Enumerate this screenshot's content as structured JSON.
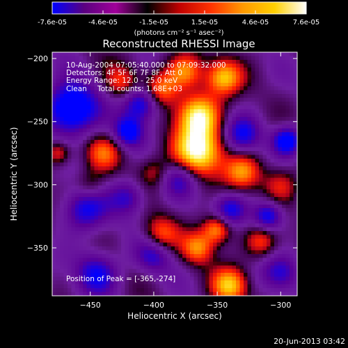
{
  "chart_data": {
    "type": "heatmap",
    "title": "Reconstructed RHESSI Image",
    "xlabel": "Heliocentric X (arcsec)",
    "ylabel": "Heliocentric Y (arcsec)",
    "xlim": [
      -480,
      -287
    ],
    "ylim": [
      -388,
      -195
    ],
    "xticks": [
      -450,
      -400,
      -350,
      -300
    ],
    "yticks": [
      -200,
      -250,
      -300,
      -350
    ],
    "colorbar": {
      "range": [
        -7.6e-05,
        7.6e-05
      ],
      "ticks": [
        "-7.6e-05",
        "-4.6e-05",
        "-1.5e-05",
        "1.5e-05",
        "4.6e-05",
        "7.6e-05"
      ],
      "unit_label": "(photons cm⁻² s⁻¹ asec⁻²)",
      "colors": [
        "#0000ff",
        "#5a0080",
        "#a0009a",
        "#000000",
        "#c00000",
        "#ff3300",
        "#ff9900",
        "#ffd000",
        "#ffffff"
      ]
    },
    "info": {
      "time_range": "10-Aug-2004 07:05:40.000 to 07:09:32.000",
      "detectors": "Detectors: 4F 5F 6F 7F 8F, Att 0",
      "energy_range": "Energy Range: 12.0 - 25.0 keV",
      "method": "Clean",
      "total_counts": "Total counts: 1.68E+03",
      "peak_position": "Position of Peak = [-365,-274]"
    },
    "blobs": [
      {
        "x": -465,
        "y": -240,
        "v": -1.0,
        "s": 14
      },
      {
        "x": -410,
        "y": -235,
        "v": -0.8,
        "s": 10
      },
      {
        "x": -420,
        "y": -258,
        "v": -0.7,
        "s": 8
      },
      {
        "x": -330,
        "y": -260,
        "v": -0.6,
        "s": 10
      },
      {
        "x": -295,
        "y": -265,
        "v": -0.8,
        "s": 8
      },
      {
        "x": -380,
        "y": -295,
        "v": -0.5,
        "s": 10
      },
      {
        "x": -420,
        "y": -310,
        "v": -0.5,
        "s": 10
      },
      {
        "x": -455,
        "y": -320,
        "v": -0.6,
        "s": 12
      },
      {
        "x": -340,
        "y": -320,
        "v": -0.6,
        "s": 9
      },
      {
        "x": -310,
        "y": -325,
        "v": -0.7,
        "s": 8
      },
      {
        "x": -445,
        "y": -370,
        "v": -0.6,
        "s": 12
      },
      {
        "x": -400,
        "y": -355,
        "v": -0.5,
        "s": 10
      },
      {
        "x": -300,
        "y": -370,
        "v": -0.5,
        "s": 10
      },
      {
        "x": -365,
        "y": -274,
        "v": 1.0,
        "s": 14
      },
      {
        "x": -365,
        "y": -245,
        "v": 0.9,
        "s": 12
      },
      {
        "x": -345,
        "y": -215,
        "v": 0.75,
        "s": 10
      },
      {
        "x": -375,
        "y": -210,
        "v": 0.6,
        "s": 10
      },
      {
        "x": -395,
        "y": -225,
        "v": 0.6,
        "s": 10
      },
      {
        "x": -330,
        "y": -290,
        "v": 0.6,
        "s": 10
      },
      {
        "x": -425,
        "y": -220,
        "v": 0.45,
        "s": 10
      },
      {
        "x": -440,
        "y": -275,
        "v": 0.45,
        "s": 10
      },
      {
        "x": -475,
        "y": -275,
        "v": 0.5,
        "s": 7
      },
      {
        "x": -400,
        "y": -290,
        "v": 0.35,
        "s": 9
      },
      {
        "x": -395,
        "y": -340,
        "v": 0.55,
        "s": 10
      },
      {
        "x": -350,
        "y": -335,
        "v": 0.7,
        "s": 8
      },
      {
        "x": -365,
        "y": -350,
        "v": 0.6,
        "s": 9
      },
      {
        "x": -315,
        "y": -345,
        "v": 0.45,
        "s": 9
      },
      {
        "x": -340,
        "y": -380,
        "v": 0.75,
        "s": 10
      },
      {
        "x": -300,
        "y": -300,
        "v": 0.4,
        "s": 10
      },
      {
        "x": -450,
        "y": -300,
        "v": 0.3,
        "s": 8
      }
    ]
  },
  "footer": {
    "timestamp": "20-Jun-2013 03:42"
  }
}
